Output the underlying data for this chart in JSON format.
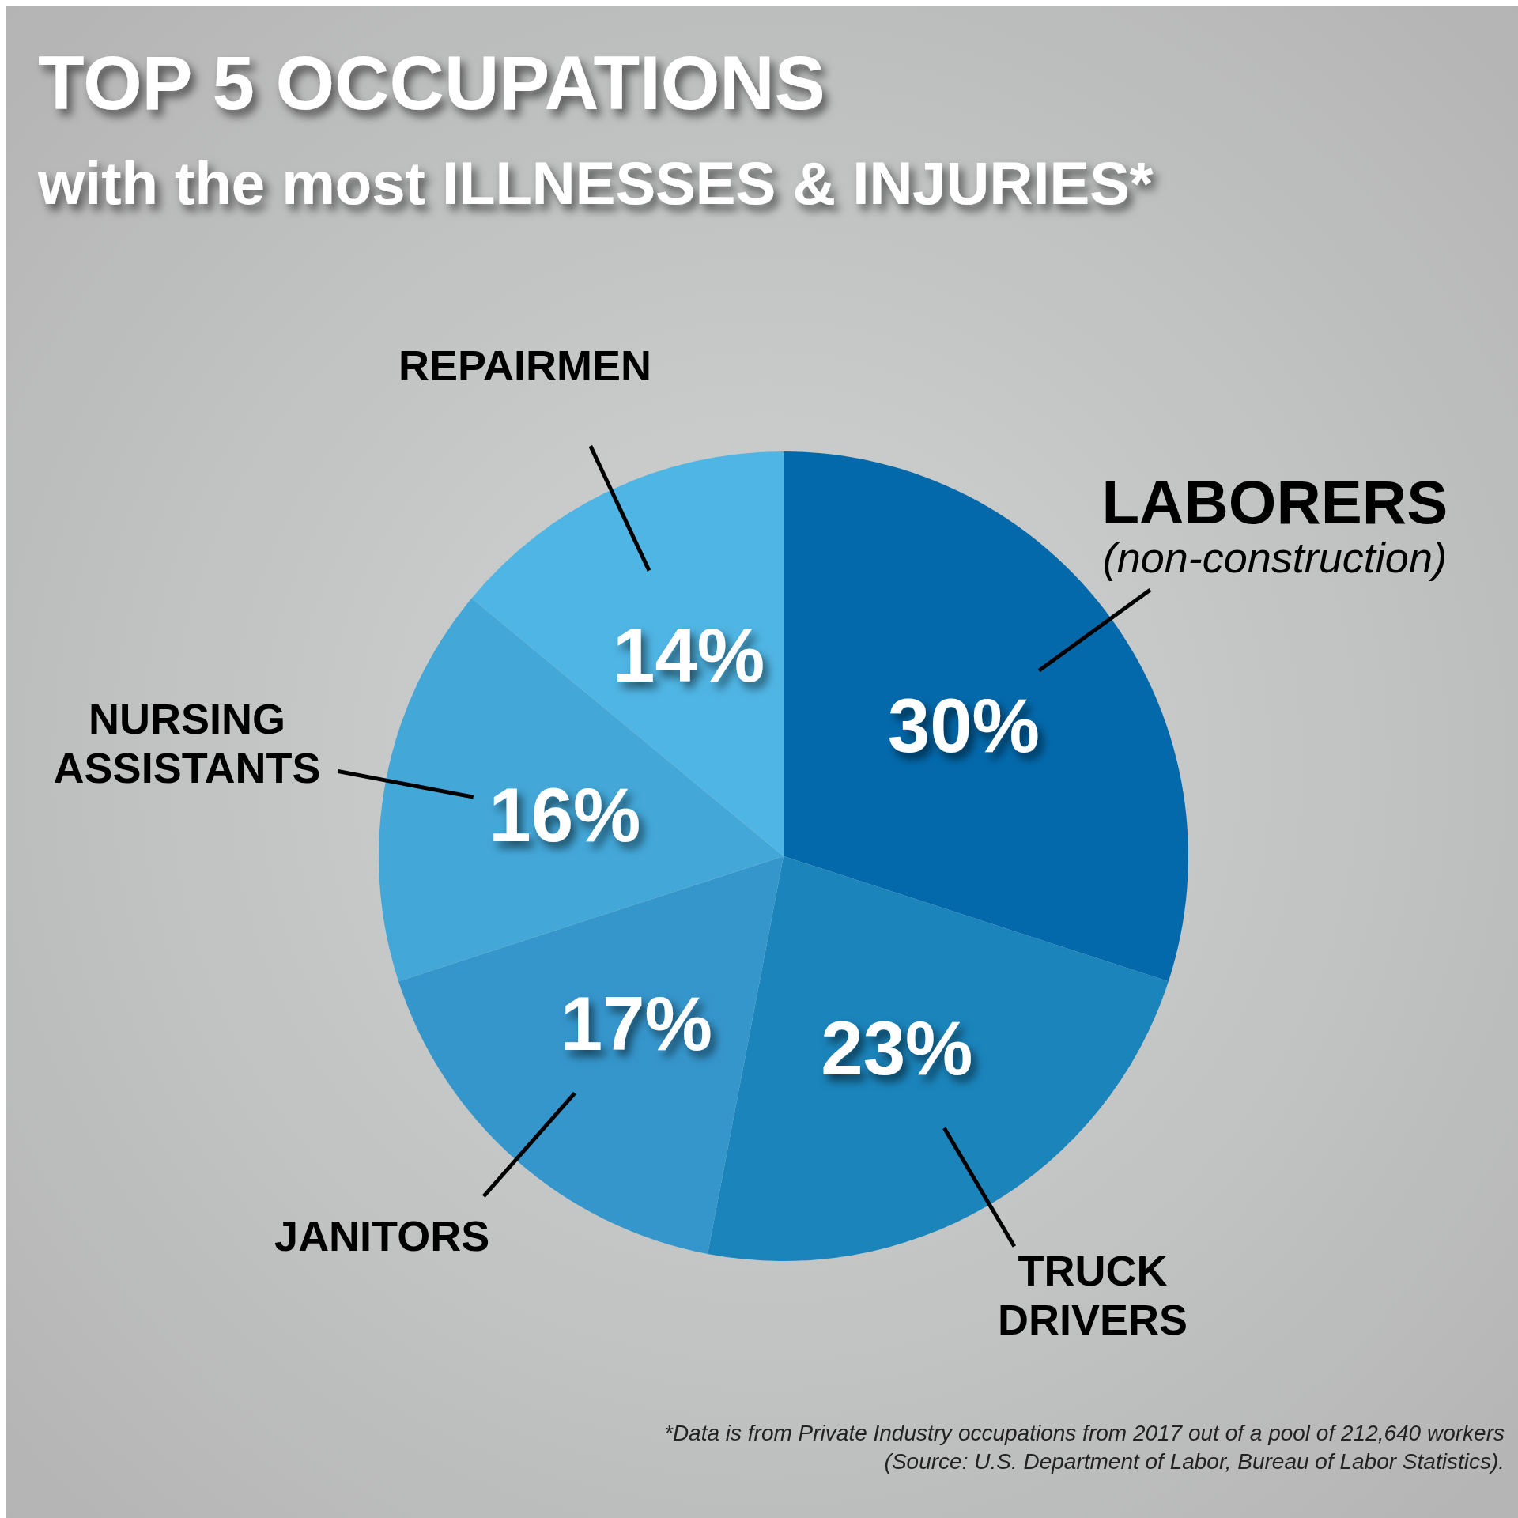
{
  "chart_data": {
    "type": "pie",
    "title": "TOP 5 OCCUPATIONS",
    "subtitle": "with the most ILLNESSES & INJURIES*",
    "categories": [
      "LABORERS\n(non-construction)",
      "TRUCK\nDRIVERS",
      "JANITORS",
      "NURSING\nASSISTANTS",
      "REPAIRMEN"
    ],
    "values": [
      30,
      23,
      17,
      16,
      14
    ],
    "value_labels": [
      "30%",
      "23%",
      "17%",
      "16%",
      "14%"
    ],
    "colors": [
      "#0369ab",
      "#1a84bb",
      "#3596cc",
      "#43a7d8",
      "#4fb5e4"
    ],
    "legend": false,
    "annotations": [
      "*Data is from Private Industry occupations from 2017 out of a pool of 212,640 workers",
      "(Source: U.S. Department of Labor, Bureau of Labor Statistics)."
    ]
  }
}
